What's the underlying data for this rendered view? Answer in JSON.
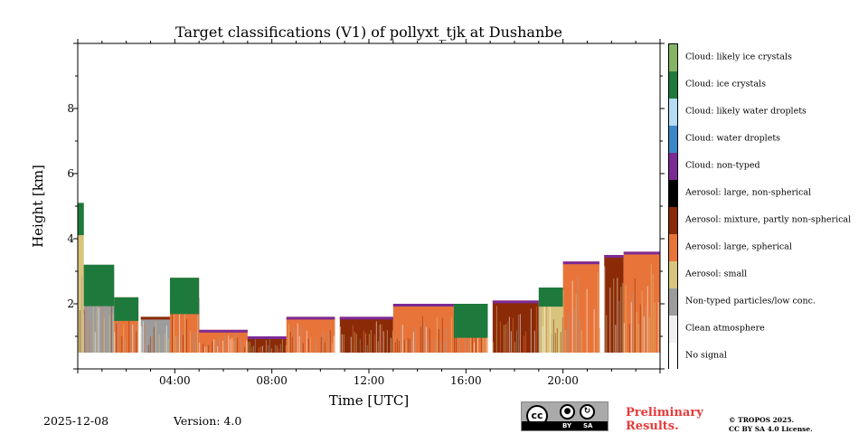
{
  "chart_data": {
    "type": "heatmap",
    "title": "Target classifications (V1) of pollyxt_tjk at Dushanbe",
    "xlabel": "Time [UTC]",
    "ylabel": "Height [km]",
    "xlim": [
      0,
      24
    ],
    "ylim": [
      0,
      10
    ],
    "xticks": [
      {
        "value": 4,
        "label": "04:00"
      },
      {
        "value": 8,
        "label": "08:00"
      },
      {
        "value": 12,
        "label": "12:00"
      },
      {
        "value": 16,
        "label": "16:00"
      },
      {
        "value": 20,
        "label": "20:00"
      }
    ],
    "yticks": [
      {
        "value": 2,
        "label": "2"
      },
      {
        "value": 4,
        "label": "4"
      },
      {
        "value": 6,
        "label": "6"
      },
      {
        "value": 8,
        "label": "8"
      }
    ],
    "classes": [
      {
        "label": "Cloud: likely ice crystals",
        "color": "#84b464"
      },
      {
        "label": "Cloud: ice crystals",
        "color": "#1e7a3c"
      },
      {
        "label": "Cloud: likely water droplets",
        "color": "#b4dcf4"
      },
      {
        "label": "Cloud: water droplets",
        "color": "#3a88c8"
      },
      {
        "label": "Cloud: non-typed",
        "color": "#7c2a94"
      },
      {
        "label": "Aerosol: large, non-spherical",
        "color": "#000000"
      },
      {
        "label": "Aerosol: mixture, partly non-spherical",
        "color": "#8b2a06"
      },
      {
        "label": "Aerosol: large, spherical",
        "color": "#e8743a"
      },
      {
        "label": "Aerosol: small",
        "color": "#d8c47c"
      },
      {
        "label": "Non-typed particles/low conc.",
        "color": "#9c9c9c"
      },
      {
        "label": "Clean atmosphere",
        "color": "#f0f0f0"
      },
      {
        "label": "No signal",
        "color": "#ffffff"
      }
    ],
    "profiles": [
      {
        "t0": 0.0,
        "t1": 0.25,
        "top": 5.1,
        "base": "Aerosol: small",
        "top_class": "Cloud: ice crystals"
      },
      {
        "t0": 0.25,
        "t1": 1.5,
        "top": 3.2,
        "base": "Non-typed particles/low conc.",
        "top_class": "Cloud: ice crystals"
      },
      {
        "t0": 1.5,
        "t1": 2.5,
        "top": 2.2,
        "base": "Aerosol: large, spherical",
        "top_class": "Cloud: ice crystals"
      },
      {
        "t0": 2.6,
        "t1": 3.8,
        "top": 1.6,
        "base": "Non-typed particles/low conc.",
        "top_class": "Aerosol: mixture, partly non-spherical"
      },
      {
        "t0": 3.8,
        "t1": 5.0,
        "top": 2.8,
        "base": "Aerosol: large, spherical",
        "top_class": "Cloud: ice crystals"
      },
      {
        "t0": 5.0,
        "t1": 7.0,
        "top": 1.2,
        "base": "Aerosol: large, spherical",
        "top_class": "Cloud: non-typed"
      },
      {
        "t0": 7.0,
        "t1": 8.6,
        "top": 1.0,
        "base": "Aerosol: mixture, partly non-spherical",
        "top_class": "Cloud: non-typed"
      },
      {
        "t0": 8.6,
        "t1": 10.6,
        "top": 1.6,
        "base": "Aerosol: large, spherical",
        "top_class": "Cloud: non-typed"
      },
      {
        "t0": 10.8,
        "t1": 13.0,
        "top": 1.6,
        "base": "Aerosol: mixture, partly non-spherical",
        "top_class": "Cloud: non-typed"
      },
      {
        "t0": 13.0,
        "t1": 15.5,
        "top": 2.0,
        "base": "Aerosol: large, spherical",
        "top_class": "Cloud: non-typed"
      },
      {
        "t0": 15.5,
        "t1": 16.9,
        "top": 2.0,
        "base": "Aerosol: large, spherical",
        "top_class": "Cloud: ice crystals"
      },
      {
        "t0": 17.1,
        "t1": 19.0,
        "top": 2.1,
        "base": "Aerosol: mixture, partly non-spherical",
        "top_class": "Cloud: non-typed"
      },
      {
        "t0": 19.0,
        "t1": 20.0,
        "top": 2.5,
        "base": "Aerosol: small",
        "top_class": "Cloud: ice crystals"
      },
      {
        "t0": 20.0,
        "t1": 21.5,
        "top": 3.3,
        "base": "Aerosol: large, spherical",
        "top_class": "Cloud: non-typed"
      },
      {
        "t0": 21.7,
        "t1": 22.5,
        "top": 3.5,
        "base": "Aerosol: mixture, partly non-spherical",
        "top_class": "Cloud: non-typed"
      },
      {
        "t0": 22.5,
        "t1": 24.0,
        "top": 3.6,
        "base": "Aerosol: large, spherical",
        "top_class": "Cloud: non-typed"
      }
    ],
    "lowest_height_km": 0.5
  },
  "footer": {
    "date": "2025-12-08",
    "version": "Version: 4.0",
    "cc_badge": {
      "cc": "cc",
      "by": "BY",
      "sa": "SA"
    },
    "preliminary_line1": "Preliminary",
    "preliminary_line2": "Results.",
    "copyright_line1": "© TROPOS 2025.",
    "copyright_line2": "CC BY SA 4.0 License."
  }
}
